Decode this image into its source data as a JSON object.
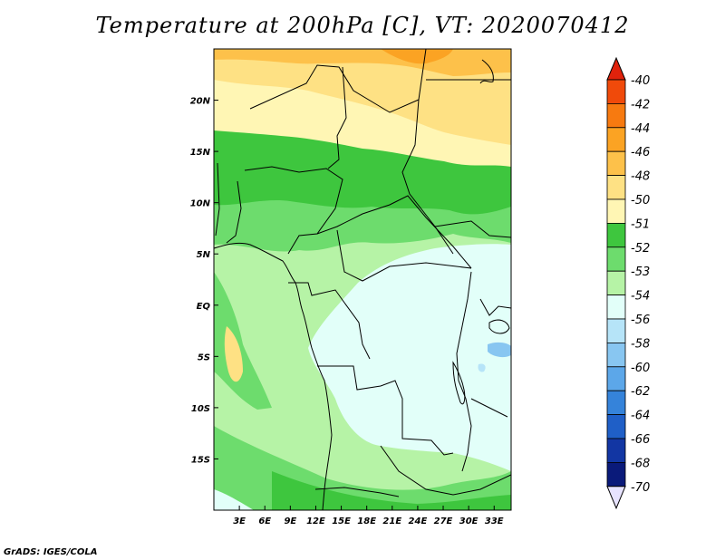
{
  "title": "Temperature at 200hPa [C], VT: 2020070412",
  "credit": "GrADS: IGES/COLA",
  "map": {
    "lon_range": [
      0,
      35
    ],
    "lat_range": [
      -20,
      25
    ],
    "lat_ticks": [
      {
        "value": 20,
        "label": "20N"
      },
      {
        "value": 15,
        "label": "15N"
      },
      {
        "value": 10,
        "label": "10N"
      },
      {
        "value": 5,
        "label": "5N"
      },
      {
        "value": 0,
        "label": "EQ"
      },
      {
        "value": -5,
        "label": "5S"
      },
      {
        "value": -10,
        "label": "10S"
      },
      {
        "value": -15,
        "label": "15S"
      }
    ],
    "lon_ticks": [
      {
        "value": 3,
        "label": "3E"
      },
      {
        "value": 6,
        "label": "6E"
      },
      {
        "value": 9,
        "label": "9E"
      },
      {
        "value": 12,
        "label": "12E"
      },
      {
        "value": 15,
        "label": "15E"
      },
      {
        "value": 18,
        "label": "18E"
      },
      {
        "value": 21,
        "label": "21E"
      },
      {
        "value": 24,
        "label": "24E"
      },
      {
        "value": 27,
        "label": "27E"
      },
      {
        "value": 30,
        "label": "30E"
      },
      {
        "value": 33,
        "label": "33E"
      }
    ]
  },
  "colorbar": {
    "labels": [
      "-40",
      "-42",
      "-44",
      "-46",
      "-48",
      "-50",
      "-51",
      "-52",
      "-53",
      "-54",
      "-56",
      "-58",
      "-60",
      "-62",
      "-64",
      "-66",
      "-68",
      "-70"
    ],
    "colors": {
      "above": "#e0220c",
      "c40_42": "#f04a0a",
      "c42_44": "#f77a10",
      "c44_46": "#fba323",
      "c46_48": "#fdc14a",
      "c48_50": "#fee184",
      "c50_51": "#fff6b4",
      "c51_52": "#3ec63e",
      "c52_53": "#6ddc6d",
      "c53_54": "#b6f3a6",
      "c54_56": "#e2fff9",
      "c56_58": "#b6e4f8",
      "c58_60": "#88c6f1",
      "c60_62": "#5ca7e9",
      "c62_64": "#3583da",
      "c64_66": "#1f5fc7",
      "c66_68": "#1236a3",
      "c68_70": "#0a1a7a",
      "below": "#e7e3ff"
    }
  }
}
